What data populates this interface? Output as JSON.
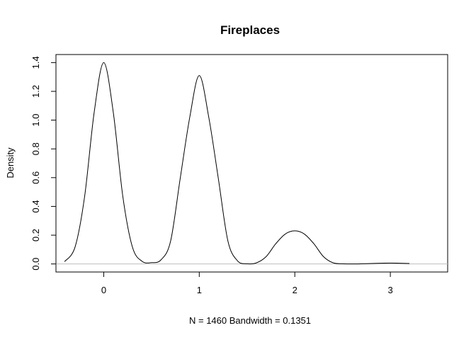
{
  "chart_data": {
    "type": "line",
    "title": "Fireplaces",
    "xlabel": "N = 1460   Bandwidth = 0.1351",
    "ylabel": "Density",
    "xlim": [
      -0.5,
      3.6
    ],
    "ylim": [
      -0.056,
      1.456
    ],
    "x_ticks": [
      0,
      1,
      2,
      3
    ],
    "x_tick_labels": [
      "0",
      "1",
      "2",
      "3"
    ],
    "y_ticks": [
      0.0,
      0.2,
      0.4,
      0.6,
      0.8,
      1.0,
      1.2,
      1.4
    ],
    "y_tick_labels": [
      "0.0",
      "0.2",
      "0.4",
      "0.6",
      "0.8",
      "1.0",
      "1.2",
      "1.4"
    ],
    "baseline": 0,
    "grid": false,
    "series": [
      {
        "x": [
          -0.41,
          -0.3,
          -0.2,
          -0.1,
          0.0,
          0.1,
          0.2,
          0.3,
          0.4,
          0.5,
          0.6,
          0.7,
          0.8,
          0.9,
          1.0,
          1.1,
          1.2,
          1.3,
          1.4,
          1.5,
          1.6,
          1.7,
          1.8,
          1.9,
          2.0,
          2.1,
          2.2,
          2.3,
          2.4,
          2.5,
          2.6,
          2.7,
          2.8,
          2.9,
          3.0,
          3.1,
          3.2
        ],
        "y": [
          0.016,
          0.118,
          0.469,
          1.054,
          1.4,
          1.054,
          0.469,
          0.118,
          0.019,
          0.009,
          0.029,
          0.159,
          0.592,
          1.018,
          1.31,
          1.018,
          0.592,
          0.159,
          0.022,
          0.001,
          0.008,
          0.051,
          0.14,
          0.208,
          0.23,
          0.208,
          0.14,
          0.051,
          0.008,
          0.001,
          0.0,
          0.001,
          0.003,
          0.005,
          0.006,
          0.005,
          0.003
        ]
      }
    ],
    "line_color": "#000000",
    "baseline_color": "#bebebe"
  }
}
